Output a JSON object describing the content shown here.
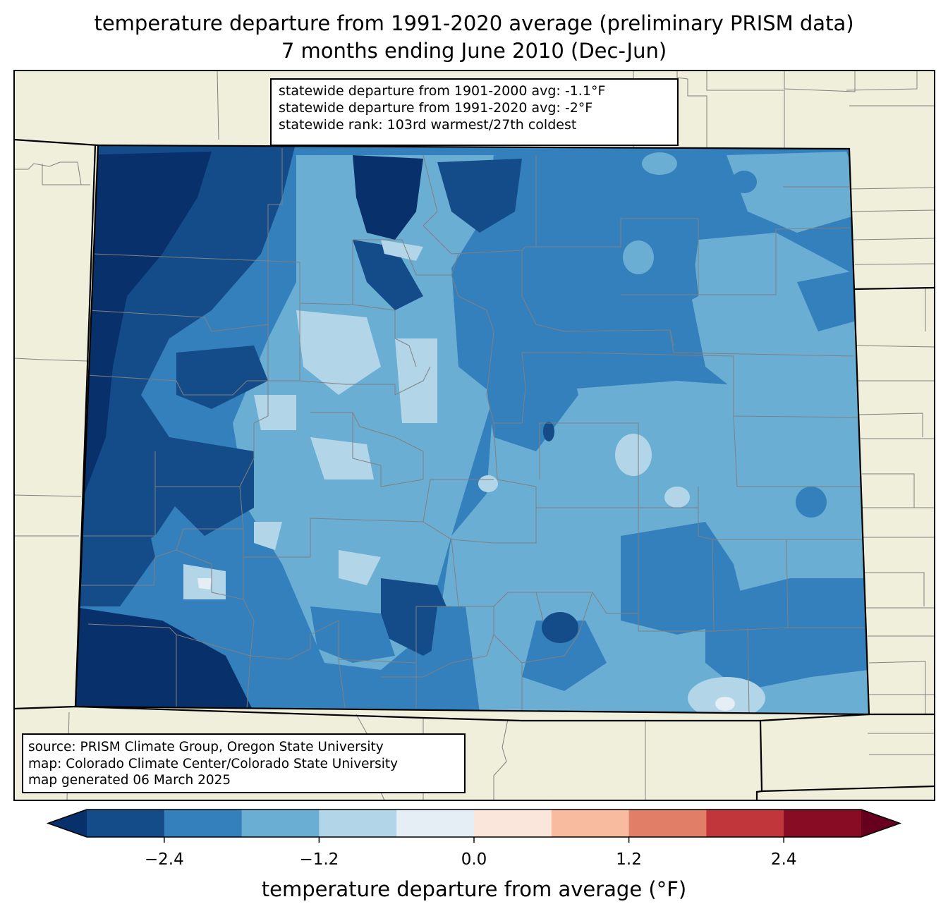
{
  "title": {
    "line1": "temperature departure from 1991-2020 average (preliminary PRISM data)",
    "line2": "7 months ending June 2010 (Dec-Jun)"
  },
  "stats": {
    "line1": "statewide departure from 1901-2000 avg: -1.1°F",
    "line2": "statewide departure from 1991-2020 avg: -2°F",
    "line3": "statewide rank: 103rd warmest/27th coldest"
  },
  "credits": {
    "line1": "source: PRISM Climate Group, Oregon State University",
    "line2": "map: Colorado Climate Center/Colorado State University",
    "line3": "map generated 06 March 2025"
  },
  "colorbar": {
    "label": "temperature departure from average (°F)",
    "ticks": [
      "−2.4",
      "−1.2",
      "0.0",
      "1.2",
      "2.4"
    ],
    "tick_values": [
      -2.4,
      -1.2,
      0.0,
      1.2,
      2.4
    ],
    "bounds": [
      -3.0,
      3.0
    ],
    "step": 0.6,
    "extend": "both",
    "colors": [
      "#08306b",
      "#144c89",
      "#3380bd",
      "#6aaed3",
      "#b3d5e8",
      "#e5eef4",
      "#fbe6dc",
      "#f8bba0",
      "#e17e68",
      "#c0363a",
      "#870c24",
      "#67001f"
    ]
  },
  "map": {
    "background": "#efefdc",
    "county_line_color": "#808080",
    "state_line_color": "#000000"
  }
}
